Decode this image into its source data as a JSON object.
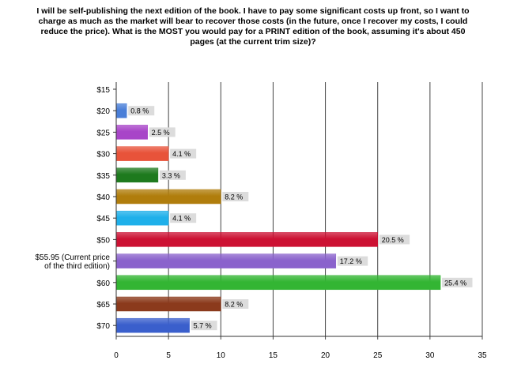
{
  "chart_data": {
    "type": "bar",
    "orientation": "horizontal",
    "title": "I will be self-publishing the next edition of the book.  I have to pay some significant costs up front, so I want to charge as much as the market will bear to recover those costs (in the future, once I recover my costs, I could reduce the price).  What is the MOST you would pay for a PRINT edition of the book, assuming it's about 450 pages (at the current trim size)?",
    "categories": [
      [
        "$15"
      ],
      [
        "$20"
      ],
      [
        "$25"
      ],
      [
        "$30"
      ],
      [
        "$35"
      ],
      [
        "$40"
      ],
      [
        "$45"
      ],
      [
        "$50"
      ],
      [
        "$55.95 (Current price",
        "of the third edition)"
      ],
      [
        "$60"
      ],
      [
        "$65"
      ],
      [
        "$70"
      ]
    ],
    "values": [
      0,
      1,
      3,
      5,
      4,
      10,
      5,
      25,
      21,
      31,
      10,
      7
    ],
    "percent_labels": [
      "",
      "0.8 %",
      "2.5 %",
      "4.1 %",
      "3.3 %",
      "8.2 %",
      "4.1 %",
      "20.5 %",
      "17.2 %",
      "25.4 %",
      "8.2 %",
      "5.7 %"
    ],
    "colors": [
      "#cccccc",
      "#4a7fd8",
      "#a845c8",
      "#e8533a",
      "#1e7a1e",
      "#b07d0c",
      "#1fb0ea",
      "#cc1133",
      "#8a62cc",
      "#33b533",
      "#8b3a1c",
      "#3a5fcc"
    ],
    "xlim": [
      0,
      35
    ],
    "xticks": [
      0,
      5,
      10,
      15,
      20,
      25,
      30,
      35
    ],
    "grid": true,
    "xlabel": "",
    "ylabel": ""
  }
}
